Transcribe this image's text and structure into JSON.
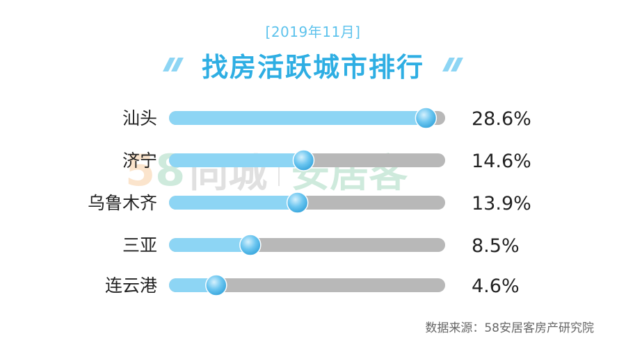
{
  "header": {
    "date": "[2019年11月]",
    "title": "找房活跃城市排行"
  },
  "watermark": {
    "digit_1": "5",
    "digit_2": "8",
    "name_1": "同城",
    "name_2": "安居客"
  },
  "source": "数据来源：58安居客房产研究院",
  "colors": {
    "fill": "#8dd5f4",
    "track": "#b8b8b8",
    "knob": "#6cc6f0",
    "title": "#2eaee3"
  },
  "chart_data": {
    "type": "bar",
    "orientation": "horizontal",
    "categories": [
      "汕头",
      "济宁",
      "乌鲁木齐",
      "三亚",
      "连云港"
    ],
    "values": [
      28.6,
      14.6,
      13.9,
      8.5,
      4.6
    ],
    "value_labels": [
      "28.6%",
      "14.6%",
      "13.9%",
      "8.5%",
      "4.6%"
    ],
    "unit": "%",
    "xlim": [
      0,
      30
    ]
  }
}
